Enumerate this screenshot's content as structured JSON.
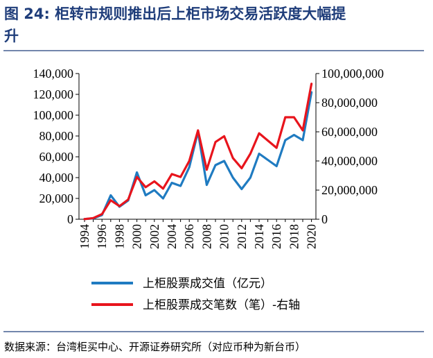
{
  "figure": {
    "title_line1": "图 24:  柜转市规则推出后上柜市场交易活跃度大幅提",
    "title_line2": "升",
    "source": "数据来源：台湾柜买中心、开源证券研究所（对应币种为新台币）"
  },
  "colors": {
    "title": "#1f3d7a",
    "rule": "#1f3d7a",
    "series_value": "#1f7bc1",
    "series_count": "#e8141c"
  },
  "chart_data": {
    "type": "line",
    "x": [
      1994,
      1995,
      1996,
      1997,
      1998,
      1999,
      2000,
      2001,
      2002,
      2003,
      2004,
      2005,
      2006,
      2007,
      2008,
      2009,
      2010,
      2011,
      2012,
      2013,
      2014,
      2015,
      2016,
      2017,
      2018,
      2019,
      2020
    ],
    "x_tick_labels": [
      "1994",
      "1996",
      "1998",
      "2000",
      "2002",
      "2004",
      "2006",
      "2008",
      "2010",
      "2012",
      "2014",
      "2016",
      "2018",
      "2020"
    ],
    "left_axis": {
      "ylim": [
        0,
        140000
      ],
      "tick_labels": [
        "0",
        "20,000",
        "40,000",
        "60,000",
        "80,000",
        "100,000",
        "120,000",
        "140,000"
      ]
    },
    "right_axis": {
      "ylim": [
        0,
        100000000
      ],
      "tick_labels": [
        "0",
        "20,000,000",
        "40,000,000",
        "60,000,000",
        "80,000,000",
        "100,000,000"
      ]
    },
    "series": [
      {
        "name": "上柜股票成交值（亿元）",
        "axis": "left",
        "values": [
          200,
          800,
          4000,
          23000,
          12000,
          18000,
          45000,
          23000,
          28000,
          20000,
          35000,
          32000,
          50000,
          84000,
          33000,
          52000,
          56000,
          40000,
          29000,
          40000,
          63000,
          57000,
          51000,
          76000,
          81000,
          76000,
          122000
        ]
      },
      {
        "name": "上柜股票成交笔数（笔）-右轴",
        "axis": "right",
        "values": [
          100000,
          800000,
          3500000,
          13000000,
          9000000,
          13500000,
          29000000,
          22000000,
          26000000,
          21000000,
          31000000,
          29000000,
          40000000,
          61000000,
          34000000,
          53000000,
          57000000,
          42000000,
          35000000,
          45000000,
          59000000,
          54000000,
          49000000,
          70000000,
          70000000,
          61000000,
          93000000
        ]
      }
    ]
  }
}
